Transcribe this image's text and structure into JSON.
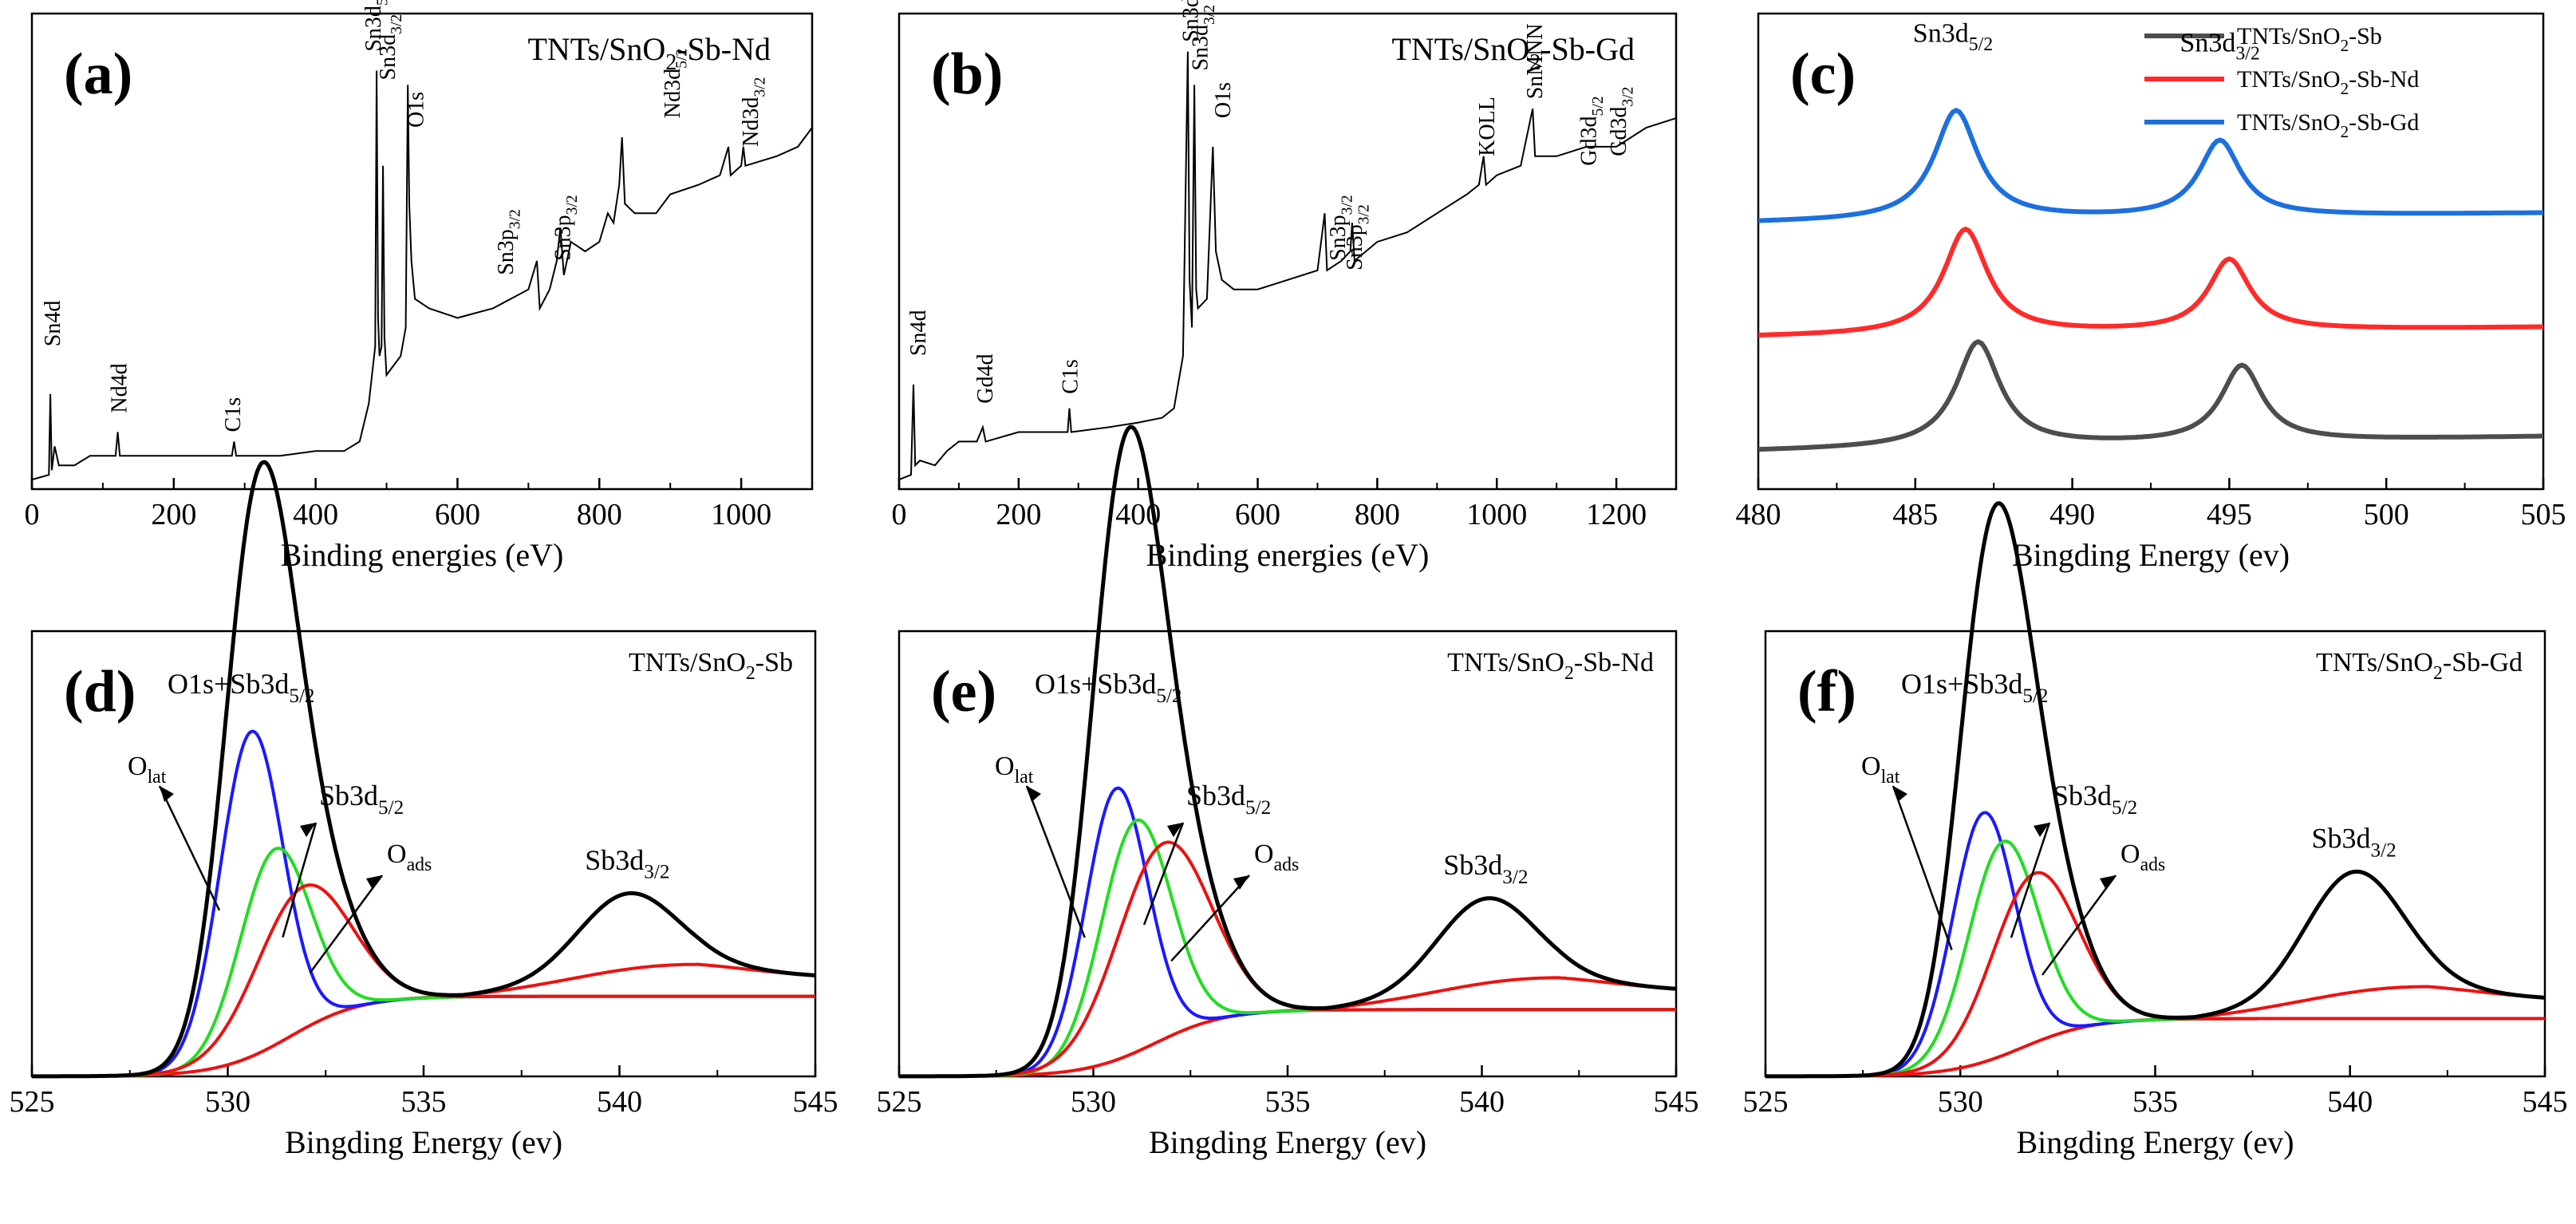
{
  "chart_data": [
    {
      "panel": "(a)",
      "type": "line",
      "title": "TNTs/SnO2-Sb-Nd",
      "xlabel": "Binding energies (eV)",
      "ylabel": "",
      "xlim": [
        0,
        1100
      ],
      "ylim": [
        0,
        100
      ],
      "xticks": [
        0,
        200,
        400,
        600,
        800,
        1000
      ],
      "series": [
        {
          "color": "#000000",
          "points": [
            [
              0,
              2
            ],
            [
              24,
              3
            ],
            [
              26,
              20
            ],
            [
              28,
              4
            ],
            [
              32,
              9
            ],
            [
              38,
              5
            ],
            [
              60,
              5
            ],
            [
              82,
              7
            ],
            [
              100,
              7
            ],
            [
              118,
              7
            ],
            [
              121,
              12
            ],
            [
              124,
              7
            ],
            [
              150,
              7
            ],
            [
              200,
              7
            ],
            [
              260,
              7
            ],
            [
              282,
              7
            ],
            [
              285,
              10
            ],
            [
              288,
              7
            ],
            [
              350,
              7
            ],
            [
              400,
              8
            ],
            [
              440,
              8
            ],
            [
              462,
              10
            ],
            [
              475,
              18
            ],
            [
              484,
              30
            ],
            [
              486,
              88
            ],
            [
              488,
              36
            ],
            [
              490,
              28
            ],
            [
              493,
              30
            ],
            [
              495,
              68
            ],
            [
              497,
              32
            ],
            [
              500,
              24
            ],
            [
              510,
              26
            ],
            [
              520,
              28
            ],
            [
              527,
              34
            ],
            [
              530,
              85
            ],
            [
              532,
              60
            ],
            [
              535,
              48
            ],
            [
              540,
              40
            ],
            [
              560,
              38
            ],
            [
              600,
              36
            ],
            [
              650,
              38
            ],
            [
              700,
              42
            ],
            [
              712,
              48
            ],
            [
              716,
              38
            ],
            [
              730,
              42
            ],
            [
              740,
              48
            ],
            [
              745,
              55
            ],
            [
              750,
              45
            ],
            [
              760,
              52
            ],
            [
              780,
              50
            ],
            [
              800,
              52
            ],
            [
              812,
              58
            ],
            [
              820,
              56
            ],
            [
              828,
              64
            ],
            [
              832,
              74
            ],
            [
              836,
              60
            ],
            [
              850,
              58
            ],
            [
              880,
              58
            ],
            [
              900,
              62
            ],
            [
              940,
              64
            ],
            [
              970,
              66
            ],
            [
              982,
              72
            ],
            [
              985,
              66
            ],
            [
              1000,
              68
            ],
            [
              1003,
              72
            ],
            [
              1006,
              68
            ],
            [
              1050,
              70
            ],
            [
              1080,
              72
            ],
            [
              1100,
              76
            ]
          ]
        }
      ],
      "annotations": [
        "Sn4d",
        "Nd4d",
        "C1s",
        "Sn3d5/2",
        "Sn3d3/2",
        "O1s",
        "Sn3p3/2",
        "Sn3p3/2",
        "Nd3d5/2",
        "Nd3d3/2"
      ]
    },
    {
      "panel": "(b)",
      "type": "line",
      "title": "TNTs/SnO2-Sb-Gd",
      "xlabel": "Binding energies (eV)",
      "ylabel": "",
      "xlim": [
        0,
        1300
      ],
      "ylim": [
        0,
        100
      ],
      "xticks": [
        0,
        200,
        400,
        600,
        800,
        1000,
        1200
      ],
      "series": [
        {
          "color": "#000000",
          "points": [
            [
              0,
              2
            ],
            [
              20,
              3
            ],
            [
              24,
              22
            ],
            [
              27,
              5
            ],
            [
              35,
              6
            ],
            [
              60,
              5
            ],
            [
              80,
              8
            ],
            [
              100,
              10
            ],
            [
              130,
              10
            ],
            [
              140,
              13
            ],
            [
              145,
              10
            ],
            [
              200,
              12
            ],
            [
              270,
              12
            ],
            [
              282,
              12
            ],
            [
              285,
              17
            ],
            [
              288,
              12
            ],
            [
              350,
              13
            ],
            [
              400,
              14
            ],
            [
              440,
              15
            ],
            [
              460,
              17
            ],
            [
              475,
              28
            ],
            [
              483,
              92
            ],
            [
              486,
              44
            ],
            [
              490,
              34
            ],
            [
              494,
              85
            ],
            [
              497,
              42
            ],
            [
              500,
              38
            ],
            [
              515,
              40
            ],
            [
              525,
              72
            ],
            [
              530,
              50
            ],
            [
              540,
              44
            ],
            [
              560,
              42
            ],
            [
              600,
              42
            ],
            [
              650,
              44
            ],
            [
              700,
              46
            ],
            [
              712,
              58
            ],
            [
              716,
              46
            ],
            [
              740,
              48
            ],
            [
              755,
              50
            ],
            [
              758,
              56
            ],
            [
              762,
              48
            ],
            [
              800,
              52
            ],
            [
              850,
              54
            ],
            [
              900,
              58
            ],
            [
              950,
              62
            ],
            [
              970,
              64
            ],
            [
              978,
              70
            ],
            [
              982,
              64
            ],
            [
              1000,
              66
            ],
            [
              1040,
              68
            ],
            [
              1060,
              80
            ],
            [
              1064,
              70
            ],
            [
              1100,
              70
            ],
            [
              1150,
              72
            ],
            [
              1200,
              72
            ],
            [
              1250,
              76
            ],
            [
              1300,
              78
            ]
          ]
        }
      ],
      "annotations": [
        "Sn4d",
        "Gd4d",
        "C1s",
        "Sn3d5/2",
        "Sn3d3/2",
        "O1s",
        "Sn3p3/2",
        "Sn3p3/2",
        "KOLL",
        "SnMNN",
        "Gd3d5/2",
        "Gd3d3/2"
      ]
    },
    {
      "panel": "(c)",
      "type": "line",
      "title": "",
      "xlabel": "Bingding Energy (ev)",
      "ylabel": "",
      "xlim": [
        480,
        505
      ],
      "ylim": [
        0,
        100
      ],
      "xticks": [
        480,
        485,
        490,
        495,
        500,
        505
      ],
      "legend_position": "top-right",
      "series": [
        {
          "name": "TNTs/SnO2-Sb",
          "color": "#4d4d4d",
          "baseline": 8,
          "offset": 0,
          "peak1": [
            487.0,
            22
          ],
          "peak2": [
            495.4,
            16
          ],
          "tail": 11
        },
        {
          "name": "TNTs/SnO2-Sb-Nd",
          "color": "#ff2a2a",
          "baseline": 32,
          "offset": 0,
          "peak1": [
            486.6,
            22
          ],
          "peak2": [
            495.0,
            15
          ],
          "tail": 34
        },
        {
          "name": "TNTs/SnO2-Sb-Gd",
          "color": "#1c6fe0",
          "baseline": 56,
          "offset": 0,
          "peak1": [
            486.3,
            23
          ],
          "peak2": [
            494.7,
            16
          ],
          "tail": 58
        }
      ],
      "annotations": [
        "Sn3d5/2",
        "Sn3d3/2"
      ]
    },
    {
      "panel": "(d)",
      "type": "line",
      "title": "TNTs/SnO2-Sb",
      "xlabel": "Bingding Energy (ev)",
      "ylabel": "",
      "xlim": [
        525,
        545
      ],
      "ylim": [
        0,
        100
      ],
      "xticks": [
        525,
        530,
        535,
        540,
        545
      ],
      "components": [
        {
          "name": "O_lat",
          "color": "#1a1aff",
          "center": 530.6,
          "height": 73,
          "width": 0.8
        },
        {
          "name": "Sb3d5/2",
          "color": "#22dd22",
          "center": 531.2,
          "height": 44,
          "width": 0.9
        },
        {
          "name": "O_ads",
          "color": "#ee1111",
          "center": 531.9,
          "height": 32,
          "width": 1.2
        }
      ],
      "envelope": {
        "color": "#000000",
        "sb3d32_center": 540.2,
        "sb3d32_height": 17
      },
      "background": {
        "color": "#ee1111",
        "start": 18,
        "end": 22
      },
      "annotations": [
        "O1s+Sb3d5/2",
        "O_lat",
        "Sb3d5/2",
        "O_ads",
        "Sb3d3/2"
      ]
    },
    {
      "panel": "(e)",
      "type": "line",
      "title": "TNTs/SnO2-Sb-Nd",
      "xlabel": "Bingding Energy (ev)",
      "ylabel": "",
      "xlim": [
        525,
        545
      ],
      "ylim": [
        0,
        100
      ],
      "xticks": [
        525,
        530,
        535,
        540,
        545
      ],
      "components": [
        {
          "name": "O_lat",
          "color": "#1a1aff",
          "center": 530.6,
          "height": 61,
          "width": 0.8
        },
        {
          "name": "Sb3d5/2",
          "color": "#22dd22",
          "center": 531.1,
          "height": 52,
          "width": 0.9
        },
        {
          "name": "O_ads",
          "color": "#ee1111",
          "center": 531.8,
          "height": 44,
          "width": 1.2
        }
      ],
      "envelope": {
        "color": "#000000",
        "sb3d32_center": 540.1,
        "sb3d32_height": 19
      },
      "background": {
        "color": "#ee1111",
        "start": 15,
        "end": 19
      },
      "annotations": [
        "O1s+Sb3d5/2",
        "O_lat",
        "Sb3d5/2",
        "O_ads",
        "Sb3d3/2"
      ]
    },
    {
      "panel": "(f)",
      "type": "line",
      "title": "TNTs/SnO2-Sb-Gd",
      "xlabel": "Bingding Energy (ev)",
      "ylabel": "",
      "xlim": [
        525,
        545
      ],
      "ylim": [
        0,
        100
      ],
      "xticks": [
        525,
        530,
        535,
        540,
        545
      ],
      "components": [
        {
          "name": "O_lat",
          "color": "#1a1aff",
          "center": 530.6,
          "height": 56,
          "width": 0.8
        },
        {
          "name": "Sb3d5/2",
          "color": "#22dd22",
          "center": 531.1,
          "height": 48,
          "width": 0.9
        },
        {
          "name": "O_ads",
          "color": "#ee1111",
          "center": 531.9,
          "height": 38,
          "width": 1.1
        }
      ],
      "envelope": {
        "color": "#000000",
        "sb3d32_center": 540.1,
        "sb3d32_height": 27
      },
      "background": {
        "color": "#ee1111",
        "start": 13,
        "end": 17
      },
      "annotations": [
        "O1s+Sb3d5/2",
        "O_lat",
        "Sb3d5/2",
        "O_ads",
        "Sb3d3/2"
      ]
    }
  ]
}
